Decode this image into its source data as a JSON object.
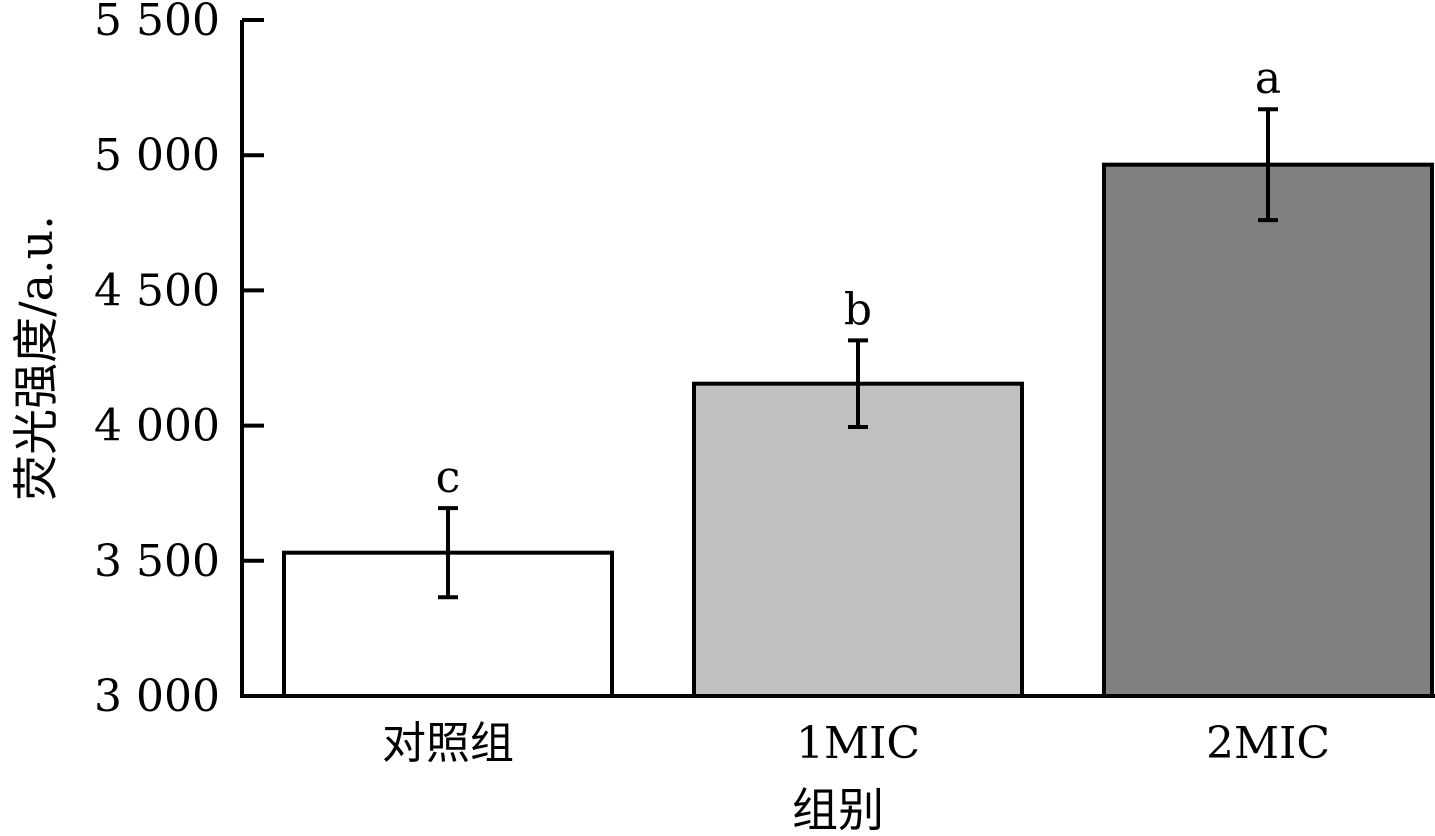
{
  "chart_data": {
    "type": "bar",
    "title": "",
    "xlabel": "组别",
    "ylabel": "荧光强度/a.u.",
    "ylim": [
      3000,
      5500
    ],
    "yticks": [
      3000,
      3500,
      4000,
      4500,
      5000,
      5500
    ],
    "ytick_labels": [
      "3 000",
      "3 500",
      "4 000",
      "4 500",
      "5 000",
      "5 500"
    ],
    "categories": [
      "对照组",
      "1MIC",
      "2MIC"
    ],
    "values": [
      3530,
      4155,
      4965
    ],
    "errors": [
      165,
      160,
      205
    ],
    "significance": [
      "c",
      "b",
      "a"
    ],
    "bar_colors": [
      "#ffffff",
      "#c0c0c0",
      "#808080"
    ],
    "grid": false,
    "legend": "none"
  }
}
